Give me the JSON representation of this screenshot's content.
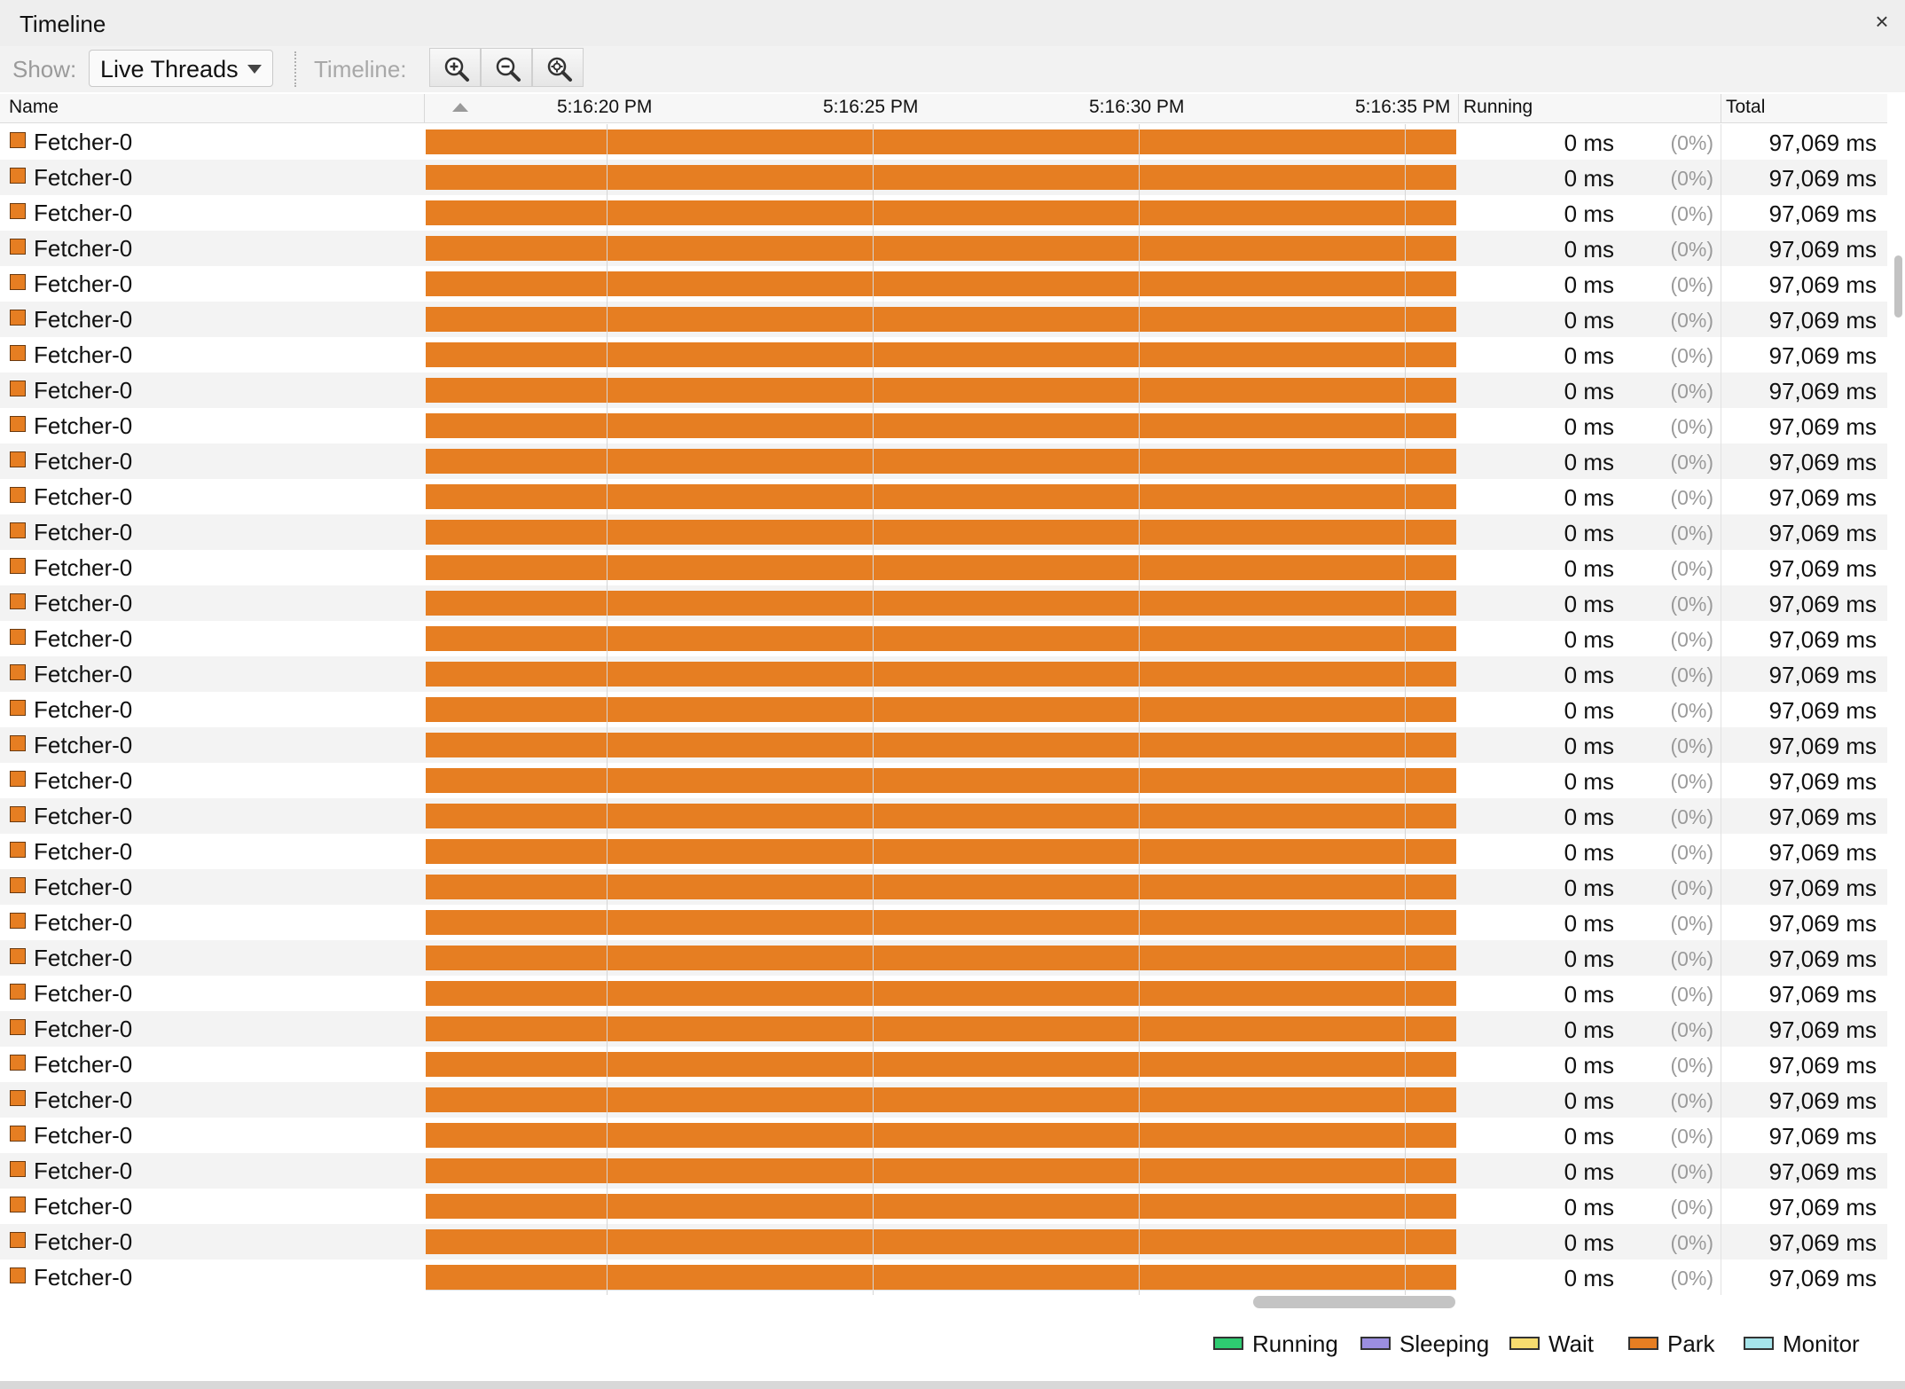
{
  "window": {
    "title": "Timeline",
    "close_glyph": "×"
  },
  "toolbar": {
    "show_label": "Show:",
    "show_value": "Live Threads",
    "timeline_label": "Timeline:",
    "zoom_buttons": [
      "zoom-in-icon",
      "zoom-out-icon",
      "zoom-fit-icon"
    ]
  },
  "columns": {
    "name": "Name",
    "running": "Running",
    "total": "Total"
  },
  "timeline_ticks": [
    "5:16:20 PM",
    "5:16:25 PM",
    "5:16:30 PM",
    "5:16:35 PM"
  ],
  "colors": {
    "park": "#e67e22",
    "running": "#2ecc71",
    "sleeping": "#9b8ee0",
    "wait": "#f7dc6f",
    "monitor": "#a6e4ea"
  },
  "rows": [
    {
      "name": "Fetcher-0",
      "running": "0 ms",
      "pct": "(0%)",
      "total": "97,069 ms"
    },
    {
      "name": "Fetcher-0",
      "running": "0 ms",
      "pct": "(0%)",
      "total": "97,069 ms"
    },
    {
      "name": "Fetcher-0",
      "running": "0 ms",
      "pct": "(0%)",
      "total": "97,069 ms"
    },
    {
      "name": "Fetcher-0",
      "running": "0 ms",
      "pct": "(0%)",
      "total": "97,069 ms"
    },
    {
      "name": "Fetcher-0",
      "running": "0 ms",
      "pct": "(0%)",
      "total": "97,069 ms"
    },
    {
      "name": "Fetcher-0",
      "running": "0 ms",
      "pct": "(0%)",
      "total": "97,069 ms"
    },
    {
      "name": "Fetcher-0",
      "running": "0 ms",
      "pct": "(0%)",
      "total": "97,069 ms"
    },
    {
      "name": "Fetcher-0",
      "running": "0 ms",
      "pct": "(0%)",
      "total": "97,069 ms"
    },
    {
      "name": "Fetcher-0",
      "running": "0 ms",
      "pct": "(0%)",
      "total": "97,069 ms"
    },
    {
      "name": "Fetcher-0",
      "running": "0 ms",
      "pct": "(0%)",
      "total": "97,069 ms"
    },
    {
      "name": "Fetcher-0",
      "running": "0 ms",
      "pct": "(0%)",
      "total": "97,069 ms"
    },
    {
      "name": "Fetcher-0",
      "running": "0 ms",
      "pct": "(0%)",
      "total": "97,069 ms"
    },
    {
      "name": "Fetcher-0",
      "running": "0 ms",
      "pct": "(0%)",
      "total": "97,069 ms"
    },
    {
      "name": "Fetcher-0",
      "running": "0 ms",
      "pct": "(0%)",
      "total": "97,069 ms"
    },
    {
      "name": "Fetcher-0",
      "running": "0 ms",
      "pct": "(0%)",
      "total": "97,069 ms"
    },
    {
      "name": "Fetcher-0",
      "running": "0 ms",
      "pct": "(0%)",
      "total": "97,069 ms"
    },
    {
      "name": "Fetcher-0",
      "running": "0 ms",
      "pct": "(0%)",
      "total": "97,069 ms"
    },
    {
      "name": "Fetcher-0",
      "running": "0 ms",
      "pct": "(0%)",
      "total": "97,069 ms"
    },
    {
      "name": "Fetcher-0",
      "running": "0 ms",
      "pct": "(0%)",
      "total": "97,069 ms"
    },
    {
      "name": "Fetcher-0",
      "running": "0 ms",
      "pct": "(0%)",
      "total": "97,069 ms"
    },
    {
      "name": "Fetcher-0",
      "running": "0 ms",
      "pct": "(0%)",
      "total": "97,069 ms"
    },
    {
      "name": "Fetcher-0",
      "running": "0 ms",
      "pct": "(0%)",
      "total": "97,069 ms"
    },
    {
      "name": "Fetcher-0",
      "running": "0 ms",
      "pct": "(0%)",
      "total": "97,069 ms"
    },
    {
      "name": "Fetcher-0",
      "running": "0 ms",
      "pct": "(0%)",
      "total": "97,069 ms"
    },
    {
      "name": "Fetcher-0",
      "running": "0 ms",
      "pct": "(0%)",
      "total": "97,069 ms"
    },
    {
      "name": "Fetcher-0",
      "running": "0 ms",
      "pct": "(0%)",
      "total": "97,069 ms"
    },
    {
      "name": "Fetcher-0",
      "running": "0 ms",
      "pct": "(0%)",
      "total": "97,069 ms"
    },
    {
      "name": "Fetcher-0",
      "running": "0 ms",
      "pct": "(0%)",
      "total": "97,069 ms"
    },
    {
      "name": "Fetcher-0",
      "running": "0 ms",
      "pct": "(0%)",
      "total": "97,069 ms"
    },
    {
      "name": "Fetcher-0",
      "running": "0 ms",
      "pct": "(0%)",
      "total": "97,069 ms"
    },
    {
      "name": "Fetcher-0",
      "running": "0 ms",
      "pct": "(0%)",
      "total": "97,069 ms"
    },
    {
      "name": "Fetcher-0",
      "running": "0 ms",
      "pct": "(0%)",
      "total": "97,069 ms"
    },
    {
      "name": "Fetcher-0",
      "running": "0 ms",
      "pct": "(0%)",
      "total": "97,069 ms"
    }
  ],
  "legend": [
    {
      "label": "Running",
      "color": "#2ecc71"
    },
    {
      "label": "Sleeping",
      "color": "#9b8ee0"
    },
    {
      "label": "Wait",
      "color": "#f7dc6f"
    },
    {
      "label": "Park",
      "color": "#e67e22"
    },
    {
      "label": "Monitor",
      "color": "#a6e4ea"
    }
  ]
}
